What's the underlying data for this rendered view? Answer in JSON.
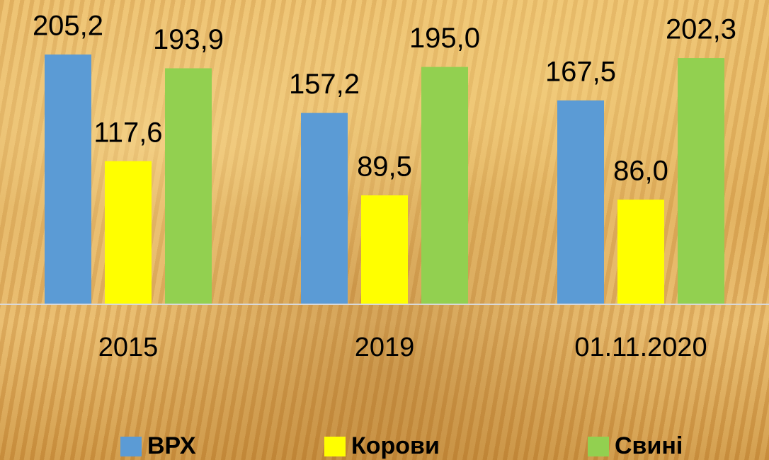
{
  "chart_data": {
    "type": "bar",
    "categories": [
      "2015",
      "2019",
      "01.11.2020"
    ],
    "ylim": [
      0,
      250
    ],
    "series": [
      {
        "name": "ВРХ",
        "color": "#5b9bd5",
        "values": [
          205.2,
          157.2,
          167.5
        ],
        "value_labels": [
          "205,2",
          "157,2",
          "167,5"
        ]
      },
      {
        "name": "Корови",
        "color": "#ffff00",
        "values": [
          117.6,
          89.5,
          86.0
        ],
        "value_labels": [
          "117,6",
          "89,5",
          "86,0"
        ]
      },
      {
        "name": "Свині",
        "color": "#92d050",
        "values": [
          193.9,
          195.0,
          202.3
        ],
        "value_labels": [
          "193,9",
          "195,0",
          "202,3"
        ]
      }
    ]
  }
}
